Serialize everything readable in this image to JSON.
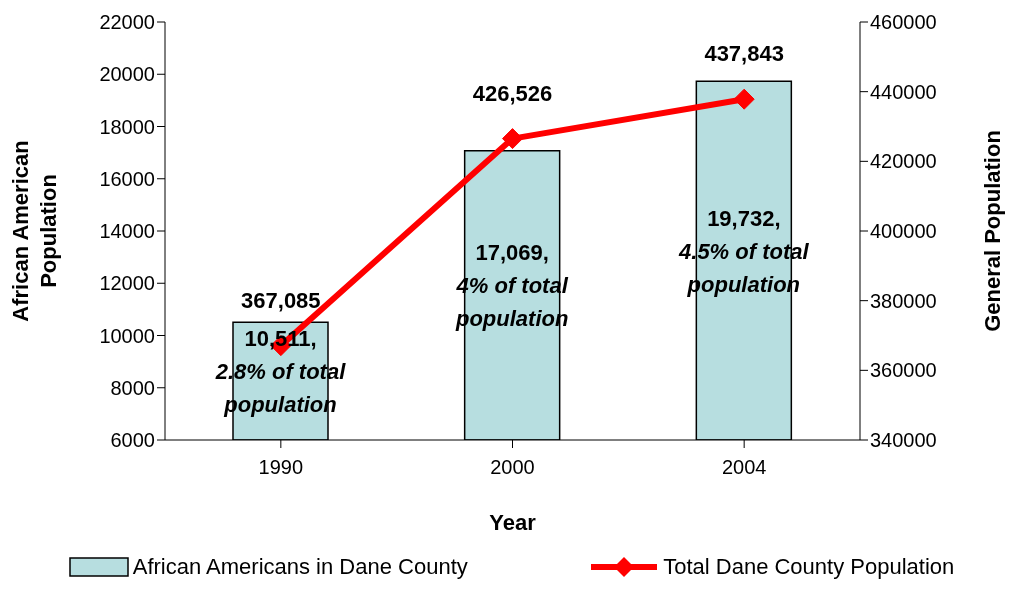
{
  "chart_data": {
    "type": "bar",
    "categories": [
      "1990",
      "2000",
      "2004"
    ],
    "xlabel": "Year",
    "ylabel": "African American Population",
    "y2label": "General Population",
    "series": [
      {
        "name": "African Americans in Dane County",
        "color": "#b7dee0",
        "values": [
          10511,
          17069,
          19732
        ],
        "value_labels": [
          "10,511, 2.8% of total population",
          "17,069, 4% of total population",
          "19,732, 4.5% of total population"
        ]
      },
      {
        "name": "Total Dane County Population",
        "type": "line",
        "axis": "y2",
        "color": "#ff0000",
        "values": [
          367085,
          426526,
          437843
        ],
        "value_labels": [
          "367,085",
          "426,526",
          "437,843"
        ],
        "marker": "diamond"
      }
    ],
    "ylim": [
      6000,
      22000
    ],
    "yticks": [
      6000,
      8000,
      10000,
      12000,
      14000,
      16000,
      18000,
      20000,
      22000
    ],
    "y2lim": [
      340000,
      460000
    ],
    "y2ticks": [
      340000,
      360000,
      380000,
      400000,
      420000,
      440000,
      460000
    ],
    "grid": false,
    "legend": "bottom"
  }
}
